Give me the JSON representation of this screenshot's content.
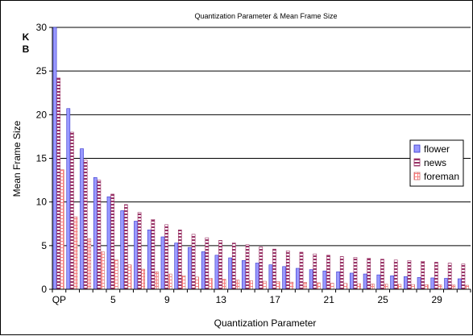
{
  "chart_data": {
    "type": "bar",
    "title": "Quantization Parameter & Mean Frame Size",
    "xlabel": "Quantization Parameter",
    "ylabel": "Mean Frame Size",
    "ylabel_unit_lines": [
      "K",
      "B"
    ],
    "ylim": [
      0,
      30
    ],
    "yticks": [
      0,
      5,
      10,
      15,
      20,
      25,
      30
    ],
    "grid": true,
    "legend_position": "right",
    "x": [
      1,
      2,
      3,
      4,
      5,
      6,
      7,
      8,
      9,
      10,
      11,
      12,
      13,
      14,
      15,
      16,
      17,
      18,
      19,
      20,
      21,
      22,
      23,
      24,
      25,
      26,
      27,
      28,
      29,
      30,
      31
    ],
    "xtick_labels": [
      "QP",
      "",
      "",
      "",
      "5",
      "",
      "",
      "",
      "9",
      "",
      "",
      "",
      "13",
      "",
      "",
      "",
      "17",
      "",
      "",
      "",
      "21",
      "",
      "",
      "",
      "25",
      "",
      "",
      "",
      "29",
      "",
      ""
    ],
    "series": [
      {
        "name": "flower",
        "color": "#9999ff",
        "values": [
          30.0,
          20.7,
          16.1,
          12.8,
          10.6,
          9.0,
          7.8,
          6.8,
          6.0,
          5.3,
          4.8,
          4.3,
          3.9,
          3.6,
          3.3,
          3.0,
          2.8,
          2.6,
          2.4,
          2.25,
          2.1,
          2.0,
          1.85,
          1.75,
          1.65,
          1.55,
          1.45,
          1.35,
          1.3,
          1.25,
          1.2
        ]
      },
      {
        "name": "news",
        "color": "#993366",
        "values": [
          24.2,
          18.0,
          14.8,
          12.5,
          10.9,
          9.7,
          8.8,
          8.0,
          7.4,
          6.8,
          6.3,
          5.9,
          5.6,
          5.3,
          5.1,
          4.85,
          4.6,
          4.4,
          4.25,
          4.05,
          3.9,
          3.75,
          3.65,
          3.55,
          3.45,
          3.35,
          3.3,
          3.2,
          3.1,
          3.0,
          2.9
        ]
      },
      {
        "name": "foreman",
        "color": "#ff8080",
        "values": [
          13.7,
          8.3,
          5.8,
          4.3,
          3.4,
          2.8,
          2.3,
          2.0,
          1.75,
          1.55,
          1.4,
          1.25,
          1.15,
          1.05,
          0.98,
          0.92,
          0.87,
          0.82,
          0.78,
          0.74,
          0.7,
          0.67,
          0.64,
          0.61,
          0.58,
          0.56,
          0.54,
          0.52,
          0.5,
          0.48,
          0.46
        ]
      }
    ]
  }
}
